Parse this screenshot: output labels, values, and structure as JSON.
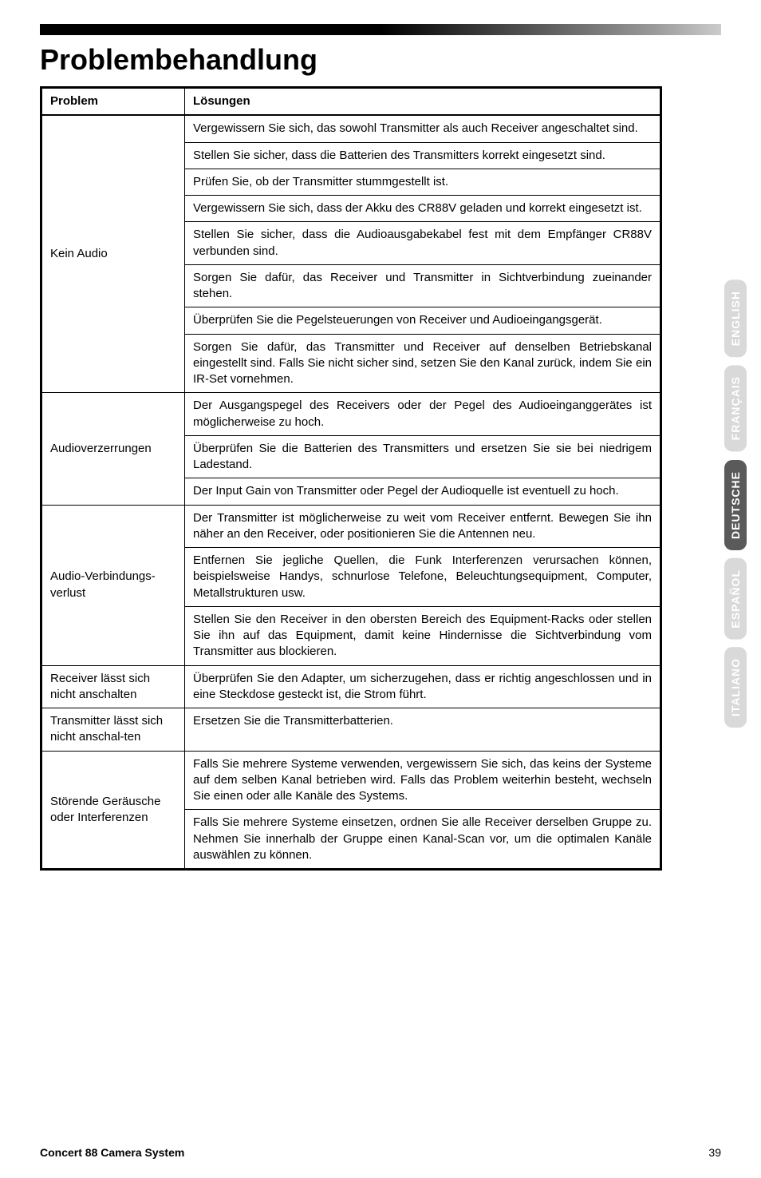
{
  "heading": "Problembehandlung",
  "table": {
    "headers": [
      "Problem",
      "Lösungen"
    ],
    "groups": [
      {
        "problem": "Kein Audio",
        "solutions": [
          "Vergewissern Sie sich, das sowohl Transmitter als auch Receiver angeschaltet sind.",
          "Stellen Sie sicher, dass die Batterien des Transmitters korrekt eingesetzt sind.",
          "Prüfen Sie, ob der Transmitter stummgestellt ist.",
          "Vergewissern Sie sich, dass der Akku des CR88V geladen und korrekt eingesetzt ist.",
          "Stellen Sie sicher, dass die Audioausgabekabel fest mit dem Empfänger CR88V verbunden sind.",
          "Sorgen Sie dafür, das Receiver und Transmitter in Sichtverbindung zueinander stehen.",
          "Überprüfen Sie die Pegelsteuerungen von Receiver und Audioeingangsgerät.",
          "Sorgen Sie dafür, das Transmitter und Receiver auf denselben Betriebskanal eingestellt sind. Falls Sie nicht sicher sind, setzen Sie den Kanal zurück, indem Sie ein IR-Set vornehmen."
        ]
      },
      {
        "problem": "Audioverzerrungen",
        "solutions": [
          "Der Ausgangspegel des Receivers oder der Pegel des Audioeinganggerätes ist möglicherweise zu hoch.",
          "Überprüfen Sie die Batterien des Transmitters und ersetzen Sie sie bei niedrigem Ladestand.",
          "Der Input Gain von Transmitter oder Pegel der Audioquelle ist eventuell zu hoch."
        ]
      },
      {
        "problem": "Audio-Verbindungs-verlust",
        "solutions": [
          "Der Transmitter ist möglicherweise zu weit vom Receiver entfernt. Bewegen Sie ihn näher an den Receiver, oder positionieren Sie die Antennen neu.",
          "Entfernen Sie jegliche Quellen, die Funk Interferenzen verursachen können, beispielsweise Handys, schnurlose Telefone, Beleuchtungsequipment, Computer, Metallstrukturen usw.",
          "Stellen Sie den Receiver in den obersten Bereich des Equipment-Racks oder stellen Sie ihn auf das Equipment, damit keine Hindernisse die Sichtverbindung vom Transmitter aus blockieren."
        ]
      },
      {
        "problem": "Receiver lässt sich nicht anschalten",
        "solutions": [
          "Überprüfen Sie den Adapter, um sicherzugehen, dass er richtig angeschlossen und in eine Steckdose gesteckt ist, die Strom führt."
        ]
      },
      {
        "problem": "Transmitter lässt sich nicht anschal-ten",
        "solutions": [
          "Ersetzen Sie die Transmitterbatterien."
        ]
      },
      {
        "problem": "Störende Geräusche oder Interferenzen",
        "solutions": [
          "Falls Sie mehrere Systeme verwenden, vergewissern Sie sich, das keins der Systeme auf dem selben Kanal betrieben wird. Falls das Problem weiterhin besteht, wechseln Sie einen oder alle Kanäle des Systems.",
          "Falls Sie mehrere Systeme einsetzen, ordnen Sie alle Receiver derselben Gruppe zu. Nehmen Sie innerhalb der Gruppe einen Kanal-Scan vor, um die optimalen Kanäle auswählen zu können."
        ]
      }
    ]
  },
  "tabs": [
    "ENGLISH",
    "FRANÇAIS",
    "DEUTSCHE",
    "ESPAÑOL",
    "ITALIANO"
  ],
  "activeTab": 2,
  "footer": {
    "title": "Concert 88 Camera System",
    "page": "39"
  },
  "colors": {
    "tabLight": "#d9d9d9",
    "tabDark": "#5a5a5a",
    "tabText": "#ffffff"
  }
}
